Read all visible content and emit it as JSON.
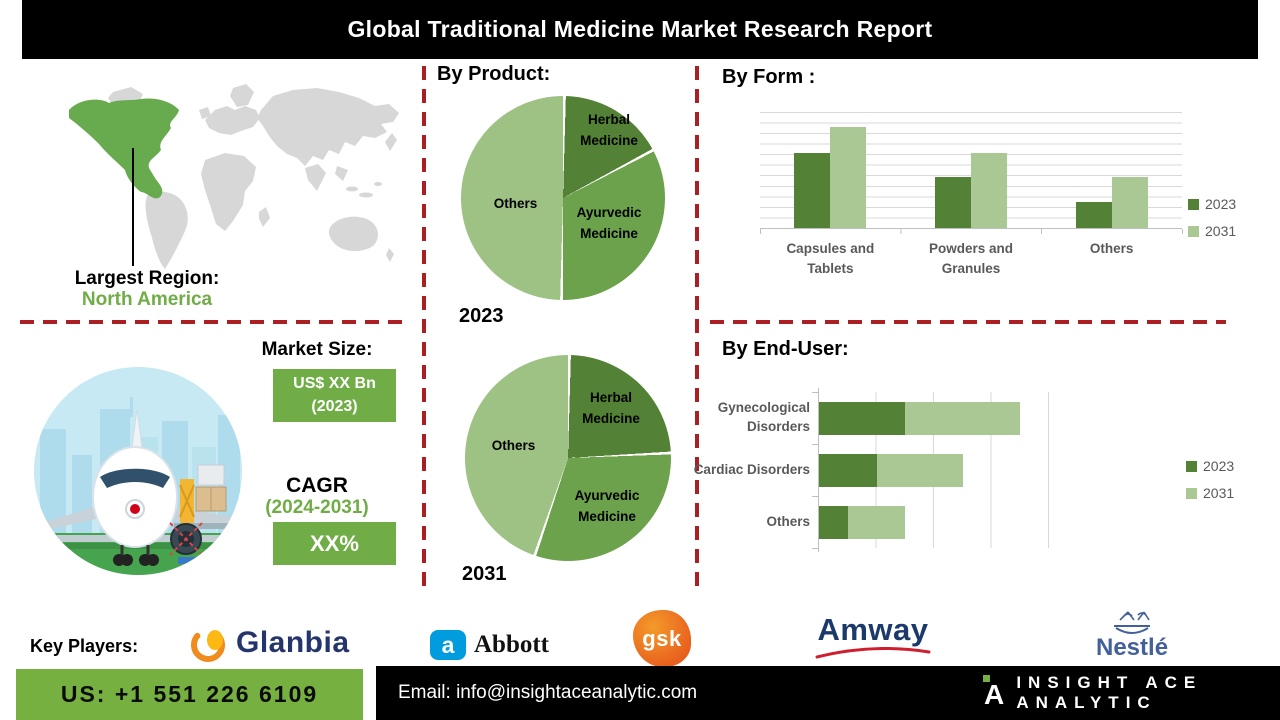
{
  "header": {
    "title": "Global Traditional Medicine Market Research Report"
  },
  "map": {
    "region_label": "Largest Region:",
    "region_value": "North America",
    "highlight_color": "#68ab4e",
    "base_color": "#d7d7d7"
  },
  "sections": {
    "by_product_title": "By Product:"
  },
  "market": {
    "size_label": "Market Size:",
    "size_value": "US$ XX Bn",
    "size_year": "(2023)",
    "cagr_label": "CAGR",
    "cagr_period": "(2024-2031)",
    "cagr_value": "XX%",
    "accent_color": "#70ad47"
  },
  "key_players": {
    "label": "Key Players:",
    "companies": [
      "Glanbia",
      "Abbott",
      "gsk",
      "Amway",
      "Nestlé"
    ],
    "abbott_mark": "a",
    "brand_mark": "A"
  },
  "footer": {
    "phone": "US: +1 551 226 6109",
    "email": "Email: info@insightaceanalytic.com",
    "brand": "INSIGHT ACE ANALYTIC",
    "phone_bg": "#76b041"
  },
  "chart_data": [
    {
      "type": "pie",
      "title": "2023",
      "labels": [
        "Herbal Medicine",
        "Ayurvedic Medicine",
        "Others"
      ],
      "values": [
        17,
        33,
        50
      ],
      "colors": [
        "#538135",
        "#6ba24b",
        "#9dc284"
      ],
      "legend_position": "none"
    },
    {
      "type": "pie",
      "title": "2031",
      "labels": [
        "Herbal Medicine",
        "Ayurvedic Medicine",
        "Others"
      ],
      "values": [
        24,
        31,
        45
      ],
      "colors": [
        "#538135",
        "#6ba24b",
        "#9dc284"
      ],
      "legend_position": "none"
    },
    {
      "type": "bar",
      "title": "By Form :",
      "categories": [
        "Capsules and Tablets",
        "Powders and Granules",
        "Others"
      ],
      "series": [
        {
          "name": "2023",
          "color": "#538135",
          "values": [
            65,
            44,
            22
          ]
        },
        {
          "name": "2031",
          "color": "#a9c894",
          "values": [
            87,
            65,
            44
          ]
        }
      ],
      "ylim": [
        0,
        100
      ],
      "grid": true,
      "legend_position": "right"
    },
    {
      "type": "bar",
      "orientation": "horizontal",
      "stacked": true,
      "title": "By End-User:",
      "categories": [
        "Gynecological Disorders",
        "Cardiac Disorders",
        "Others"
      ],
      "series": [
        {
          "name": "2023",
          "color": "#538135",
          "values": [
            1.5,
            1.0,
            0.5
          ]
        },
        {
          "name": "2031",
          "color": "#a9c894",
          "values": [
            2.0,
            1.5,
            1.0
          ]
        }
      ],
      "xlim": [
        0,
        4
      ],
      "grid": true,
      "legend_position": "right"
    }
  ]
}
